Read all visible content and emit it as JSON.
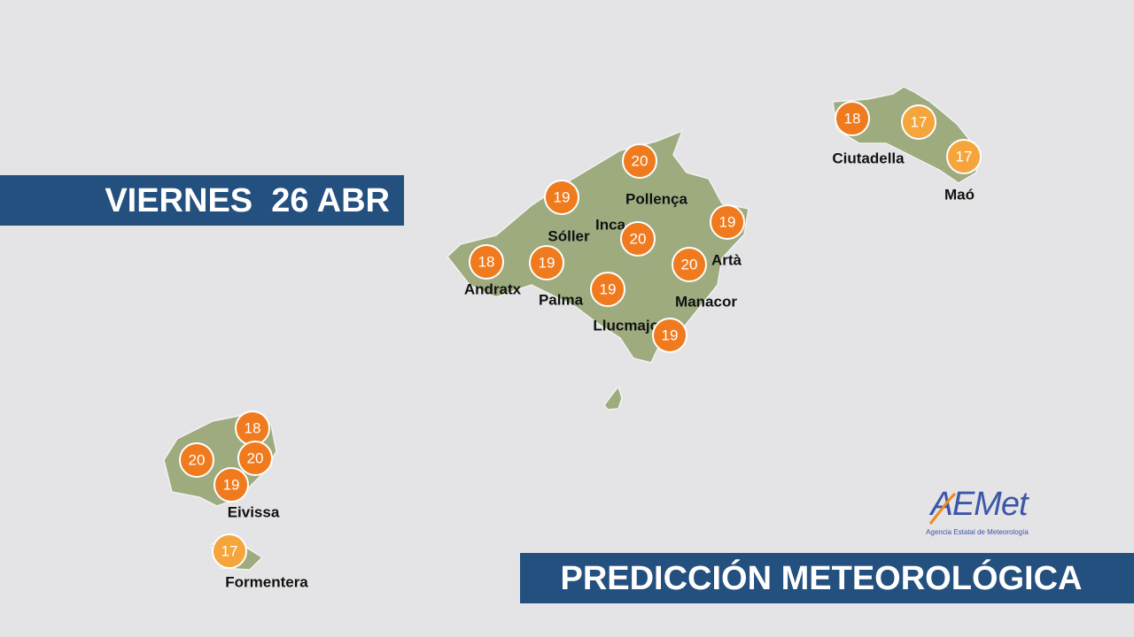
{
  "banner": {
    "date": "VIERNES  26 ABR"
  },
  "footer": {
    "title": "PREDICCIÓN METEOROLÓGICA"
  },
  "logo": {
    "name": "AEMet",
    "subtitle": "Agencia Estatal de Meteorología"
  },
  "place_labels": [
    "Pollença",
    "Inca",
    "Sóller",
    "Artà",
    "Andratx",
    "Palma",
    "Manacor",
    "Llucmajor",
    "Ciutadella",
    "Maó",
    "Eivissa",
    "Formentera"
  ],
  "temperatures": [
    {
      "value": 20,
      "color": "#f07a1e"
    },
    {
      "value": 19,
      "color": "#f07a1e"
    },
    {
      "value": 20,
      "color": "#f07a1e"
    },
    {
      "value": 19,
      "color": "#f07a1e"
    },
    {
      "value": 18,
      "color": "#f07a1e"
    },
    {
      "value": 19,
      "color": "#f07a1e"
    },
    {
      "value": 20,
      "color": "#f07a1e"
    },
    {
      "value": 19,
      "color": "#f07a1e"
    },
    {
      "value": 19,
      "color": "#f07a1e"
    },
    {
      "value": 18,
      "color": "#f07a1e"
    },
    {
      "value": 17,
      "color": "#f5a53c"
    },
    {
      "value": 17,
      "color": "#f5a53c"
    },
    {
      "value": 18,
      "color": "#f07a1e"
    },
    {
      "value": 20,
      "color": "#f07a1e"
    },
    {
      "value": 20,
      "color": "#f07a1e"
    },
    {
      "value": 19,
      "color": "#f07a1e"
    },
    {
      "value": 17,
      "color": "#f5a53c"
    }
  ]
}
